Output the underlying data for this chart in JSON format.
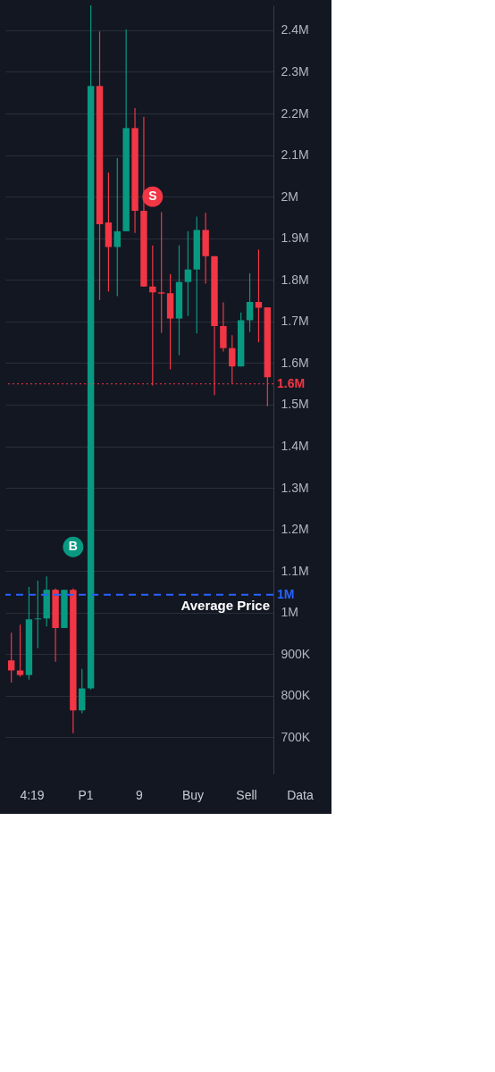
{
  "chart_data": {
    "type": "candlestick",
    "categories": [
      null,
      null,
      null,
      null,
      null,
      null,
      null,
      null,
      null,
      null,
      null,
      null,
      null,
      null,
      null,
      null,
      null,
      null,
      null,
      null,
      null,
      null,
      null,
      null,
      null,
      null,
      null,
      null,
      null,
      null
    ],
    "ohlc": [
      [
        885000,
        952000,
        832000,
        861000
      ],
      [
        861000,
        971000,
        846000,
        850000
      ],
      [
        850000,
        1062000,
        839000,
        984000
      ],
      [
        984000,
        1077000,
        915000,
        986000
      ],
      [
        986000,
        1087000,
        967000,
        1055000
      ],
      [
        1055000,
        1058000,
        882000,
        963000
      ],
      [
        963000,
        1055000,
        963000,
        1055000
      ],
      [
        1055000,
        1058000,
        710000,
        765000
      ],
      [
        765000,
        865000,
        758000,
        818000
      ],
      [
        818000,
        2460000,
        815000,
        2266000
      ],
      [
        2266000,
        2397000,
        1751000,
        1934000
      ],
      [
        1938000,
        2058000,
        1772000,
        1879000
      ],
      [
        1879000,
        2093000,
        1761000,
        1917000
      ],
      [
        1917000,
        2402000,
        1917000,
        2165000
      ],
      [
        2165000,
        2213000,
        1913000,
        1966000
      ],
      [
        1966000,
        2192000,
        1784000,
        1784000
      ],
      [
        1784000,
        1883000,
        1546000,
        1770000
      ],
      [
        1770000,
        1963000,
        1673000,
        1767000
      ],
      [
        1768000,
        1814000,
        1585000,
        1707000
      ],
      [
        1707000,
        1883000,
        1619000,
        1795000
      ],
      [
        1795000,
        1917000,
        1713000,
        1825000
      ],
      [
        1825000,
        1952000,
        1671000,
        1920000
      ],
      [
        1920000,
        1961000,
        1791000,
        1857000
      ],
      [
        1857000,
        1857000,
        1523000,
        1689000
      ],
      [
        1689000,
        1746000,
        1628000,
        1636000
      ],
      [
        1636000,
        1667000,
        1551000,
        1592000
      ],
      [
        1592000,
        1722000,
        1592000,
        1703000
      ],
      [
        1703000,
        1816000,
        1675000,
        1747000
      ],
      [
        1747000,
        1873000,
        1650000,
        1733000
      ],
      [
        1734000,
        1734000,
        1496000,
        1566000
      ]
    ],
    "colors": [
      "#f23645",
      "#f23645",
      "#089981",
      "#089981",
      "#089981",
      "#f23645",
      "#089981",
      "#f23645",
      "#089981",
      "#089981",
      "#f23645",
      "#f23645",
      "#089981",
      "#089981",
      "#f23645",
      "#f23645",
      "#f23645",
      "#f23645",
      "#f23645",
      "#089981",
      "#089981",
      "#089981",
      "#f23645",
      "#f23645",
      "#f23645",
      "#f23645",
      "#089981",
      "#089981",
      "#f23645",
      "#f23645"
    ],
    "series": [
      {
        "type": "scatter",
        "marker": "circle",
        "values": [
          null,
          null,
          null,
          null,
          null,
          null,
          null,
          1158000,
          null,
          null,
          null,
          null,
          null,
          null,
          null,
          null,
          2000000,
          null,
          null,
          null,
          null,
          null,
          null,
          null,
          null,
          null,
          null,
          null,
          null,
          null
        ],
        "colors": [
          null,
          null,
          null,
          null,
          null,
          null,
          null,
          "#089981",
          null,
          null,
          null,
          null,
          null,
          null,
          null,
          null,
          "#f23645",
          null,
          null,
          null,
          null,
          null,
          null,
          null,
          null,
          null,
          null,
          null,
          null,
          null
        ],
        "value_labels": [
          null,
          null,
          null,
          null,
          null,
          null,
          null,
          "B",
          null,
          null,
          null,
          null,
          null,
          null,
          null,
          null,
          "S",
          null,
          null,
          null,
          null,
          null,
          null,
          null,
          null,
          null,
          null,
          null,
          null,
          null
        ]
      }
    ],
    "ylim": [
      613000,
      2460000
    ],
    "yticks": [
      {
        "value": 700000,
        "label": "700K"
      },
      {
        "value": 800000,
        "label": "800K"
      },
      {
        "value": 900000,
        "label": "900K"
      },
      {
        "value": 1000000,
        "label": "1M"
      },
      {
        "value": 1100000,
        "label": "1.1M"
      },
      {
        "value": 1200000,
        "label": "1.2M"
      },
      {
        "value": 1300000,
        "label": "1.3M"
      },
      {
        "value": 1400000,
        "label": "1.4M"
      },
      {
        "value": 1500000,
        "label": "1.5M"
      },
      {
        "value": 1600000,
        "label": "1.6M"
      },
      {
        "value": 1700000,
        "label": "1.7M"
      },
      {
        "value": 1800000,
        "label": "1.8M"
      },
      {
        "value": 1900000,
        "label": "1.9M"
      },
      {
        "value": 2000000,
        "label": "2M"
      },
      {
        "value": 2100000,
        "label": "2.1M"
      },
      {
        "value": 2200000,
        "label": "2.2M"
      },
      {
        "value": 2300000,
        "label": "2.3M"
      },
      {
        "value": 2400000,
        "label": "2.4M"
      }
    ],
    "tick_labels": "y",
    "grid": "y",
    "ref_lines": [
      {
        "axis": "y",
        "value": 1043000,
        "label": "1M",
        "color": "#2962ff",
        "line_style": "dashed"
      },
      {
        "axis": "y",
        "value": 1550000,
        "label": "1.6M",
        "color": "#f23645",
        "line_style": "dotted"
      }
    ],
    "annotations": [
      {
        "text": "Average Price",
        "y": 1043000
      },
      "4:19",
      "P1",
      "9",
      "Buy",
      "Sell",
      "Data"
    ]
  }
}
